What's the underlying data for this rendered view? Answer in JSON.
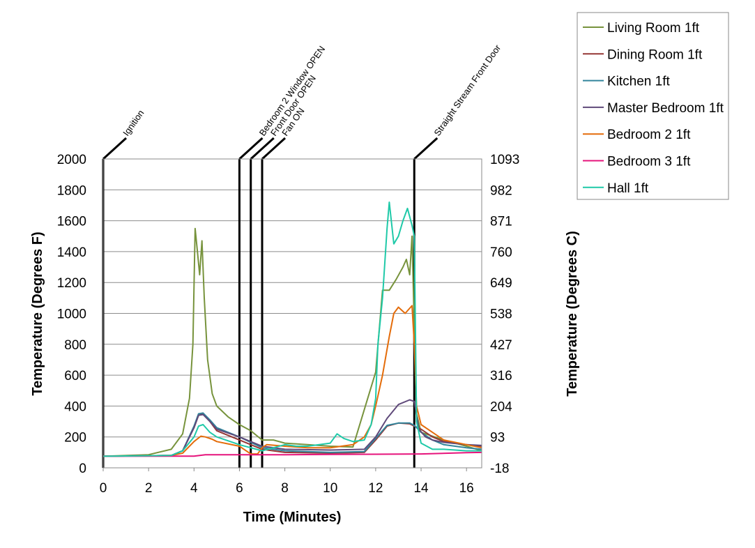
{
  "chart_data": {
    "type": "line",
    "xlabel": "Time (Minutes)",
    "ylabel": "Temperature (Degrees F)",
    "y2label": "Temperature (Degrees C)",
    "xlim": [
      0,
      16.67
    ],
    "ylim": [
      0,
      2000
    ],
    "grid": "horizontal",
    "legend_position": "top-right",
    "x_ticks": [
      "0",
      "2",
      "4",
      "6",
      "8",
      "10",
      "12",
      "14",
      "16"
    ],
    "y_ticks": [
      "0",
      "200",
      "400",
      "600",
      "800",
      "1000",
      "1200",
      "1400",
      "1600",
      "1800",
      "2000"
    ],
    "y2_ticks": [
      "-18",
      "93",
      "204",
      "316",
      "427",
      "538",
      "649",
      "760",
      "871",
      "982",
      "1093"
    ],
    "events": [
      {
        "label": "Ignition",
        "time": 0.0
      },
      {
        "label": "Bedroom 2 Window OPEN",
        "time": 6.0
      },
      {
        "label": "Front Door OPEN",
        "time": 6.5
      },
      {
        "label": "Fan ON",
        "time": 7.0
      },
      {
        "label": "Straight Stream Front Door",
        "time": 13.7
      }
    ],
    "series": [
      {
        "name": "Living Room 1ft",
        "color": "#77933c",
        "x": [
          0,
          2,
          3,
          3.5,
          3.8,
          3.95,
          4.05,
          4.15,
          4.25,
          4.35,
          4.45,
          4.6,
          4.8,
          5,
          5.5,
          6,
          6.5,
          7,
          7.5,
          8,
          9,
          10,
          11,
          12,
          12.3,
          12.6,
          12.9,
          13.2,
          13.35,
          13.5,
          13.6,
          13.7,
          13.8,
          14,
          15,
          16,
          16.67
        ],
        "y": [
          75,
          85,
          120,
          220,
          450,
          800,
          1550,
          1400,
          1250,
          1470,
          1100,
          700,
          480,
          400,
          330,
          280,
          240,
          180,
          180,
          160,
          150,
          140,
          135,
          620,
          1150,
          1150,
          1220,
          1300,
          1350,
          1250,
          1500,
          900,
          350,
          230,
          180,
          140,
          110
        ]
      },
      {
        "name": "Dining Room 1ft",
        "color": "#953735",
        "x": [
          0,
          3,
          3.5,
          4,
          4.2,
          4.4,
          4.7,
          5,
          6,
          7,
          8,
          10,
          11.5,
          12,
          12.5,
          13,
          13.5,
          13.7,
          14,
          14.5,
          15,
          16,
          16.67
        ],
        "y": [
          75,
          80,
          110,
          260,
          340,
          350,
          300,
          240,
          180,
          120,
          100,
          95,
          100,
          180,
          270,
          290,
          285,
          270,
          250,
          200,
          170,
          150,
          140
        ]
      },
      {
        "name": "Kitchen 1ft",
        "color": "#31859c",
        "x": [
          0,
          3,
          3.5,
          4,
          4.2,
          4.4,
          4.7,
          5,
          6,
          7,
          8,
          10,
          11.5,
          12,
          12.5,
          13,
          13.5,
          13.7,
          14,
          14.5,
          15,
          16,
          16.67
        ],
        "y": [
          75,
          80,
          110,
          270,
          350,
          355,
          310,
          260,
          200,
          130,
          110,
          100,
          105,
          190,
          275,
          290,
          290,
          275,
          230,
          180,
          150,
          130,
          120
        ]
      },
      {
        "name": "Master Bedroom 1ft",
        "color": "#5f497a",
        "x": [
          0,
          3,
          3.5,
          4,
          4.2,
          4.4,
          4.7,
          5,
          6,
          7,
          8,
          10,
          11.5,
          12,
          12.5,
          13,
          13.5,
          13.7,
          13.9,
          14.2,
          14.5,
          15,
          16,
          16.67
        ],
        "y": [
          75,
          80,
          110,
          260,
          340,
          345,
          300,
          250,
          200,
          140,
          120,
          115,
          120,
          200,
          320,
          410,
          440,
          430,
          250,
          200,
          180,
          165,
          150,
          145
        ]
      },
      {
        "name": "Bedroom 2 1ft",
        "color": "#e46c0a",
        "x": [
          0,
          3,
          3.5,
          4,
          4.3,
          4.5,
          4.8,
          5,
          6,
          6.5,
          6.8,
          7,
          7.2,
          8,
          9,
          10,
          11,
          11.5,
          11.8,
          12,
          12.3,
          12.6,
          12.8,
          13,
          13.3,
          13.6,
          13.7,
          13.8,
          14,
          14.5,
          15,
          16,
          16.67
        ],
        "y": [
          75,
          80,
          95,
          170,
          205,
          200,
          185,
          170,
          140,
          90,
          90,
          130,
          150,
          140,
          130,
          130,
          150,
          200,
          280,
          400,
          600,
          850,
          1000,
          1040,
          1000,
          1050,
          800,
          400,
          280,
          230,
          180,
          150,
          130
        ]
      },
      {
        "name": "Bedroom 3 1ft",
        "color": "#e6137b",
        "x": [
          0,
          4,
          4.5,
          6,
          8,
          10,
          12,
          14,
          16,
          16.67
        ],
        "y": [
          75,
          76,
          85,
          85,
          85,
          87,
          88,
          90,
          98,
          100
        ]
      },
      {
        "name": "Hall 1ft",
        "color": "#1fc9a8",
        "x": [
          0,
          3,
          3.5,
          4,
          4.2,
          4.4,
          4.7,
          5,
          6,
          7,
          8,
          8.5,
          9,
          10,
          10.3,
          10.6,
          11,
          11.5,
          11.8,
          12,
          12.1,
          12.3,
          12.5,
          12.6,
          12.8,
          13,
          13.2,
          13.4,
          13.6,
          13.7,
          13.8,
          14,
          14.5,
          15,
          16,
          16.67
        ],
        "y": [
          75,
          80,
          110,
          200,
          270,
          280,
          230,
          200,
          150,
          110,
          150,
          140,
          140,
          160,
          220,
          190,
          170,
          180,
          280,
          450,
          800,
          1100,
          1550,
          1720,
          1450,
          1500,
          1600,
          1680,
          1570,
          1500,
          300,
          160,
          120,
          120,
          110,
          110
        ]
      }
    ]
  }
}
